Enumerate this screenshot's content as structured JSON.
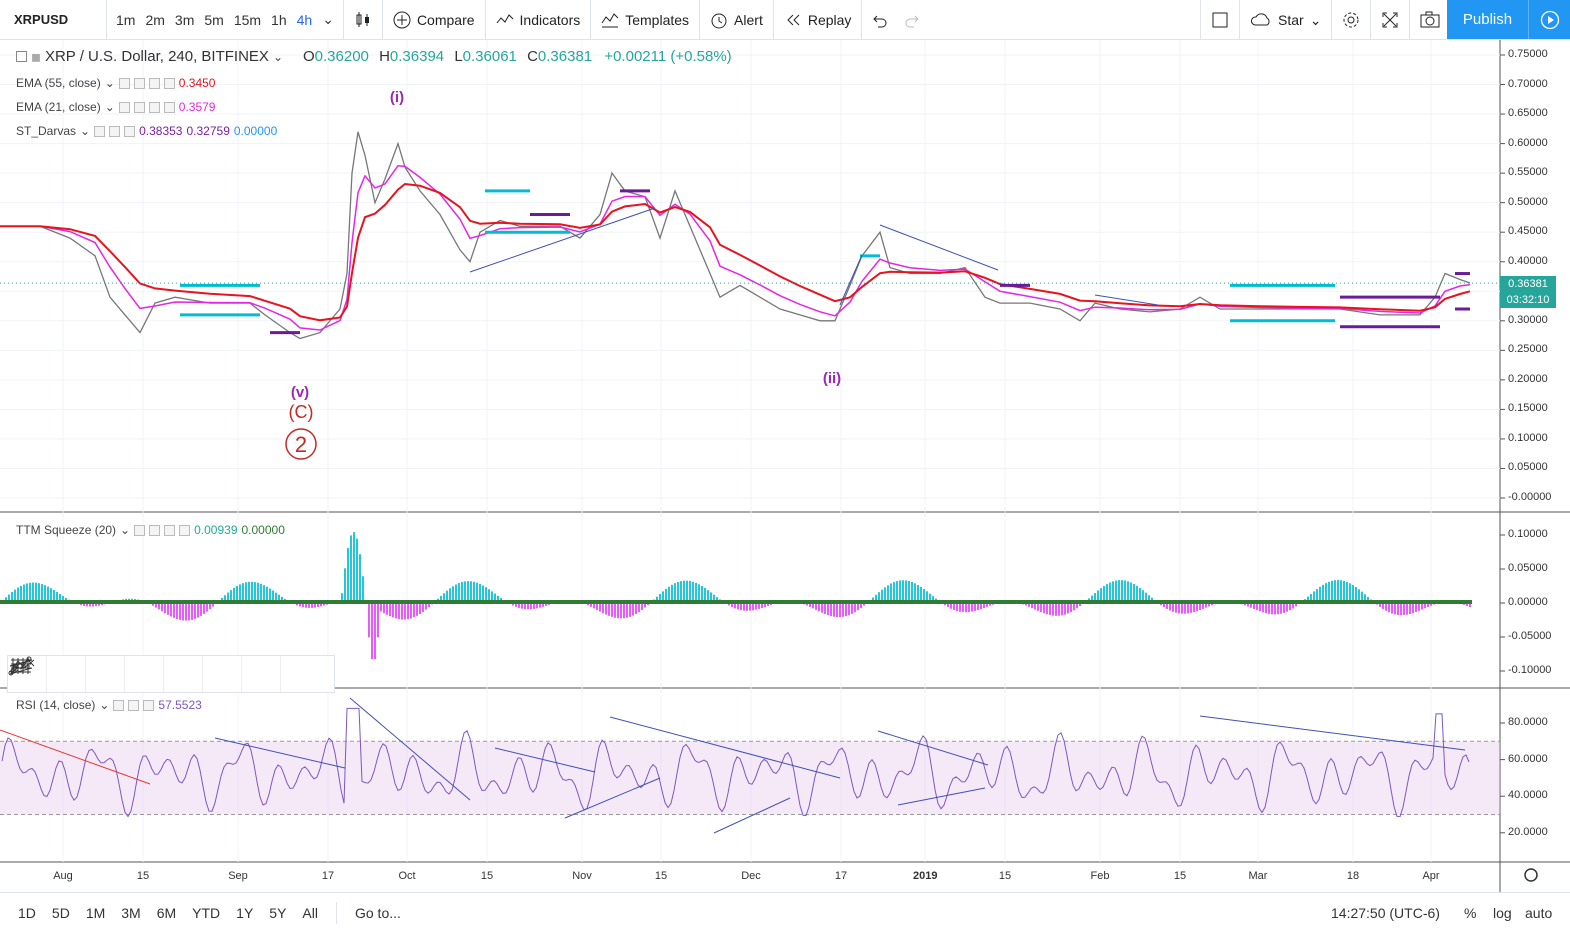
{
  "toolbar": {
    "symbol": "XRPUSD",
    "intervals": [
      "1m",
      "2m",
      "3m",
      "5m",
      "15m",
      "1h",
      "4h"
    ],
    "active_interval": "4h",
    "compare_label": "Compare",
    "indicators_label": "Indicators",
    "templates_label": "Templates",
    "alert_label": "Alert",
    "replay_label": "Replay",
    "star_label": "Star",
    "publish_label": "Publish"
  },
  "legend": {
    "title": "XRP / U.S. Dollar, 240, BITFINEX",
    "o_label": "O",
    "o": "0.36200",
    "h_label": "H",
    "h": "0.36394",
    "l_label": "L",
    "l": "0.36061",
    "c_label": "C",
    "c": "0.36381",
    "change": "+0.00211 (+0.58%)",
    "ema55_label": "EMA (55, close)",
    "ema55_value": "0.3450",
    "ema21_label": "EMA (21, close)",
    "ema21_value": "0.3579",
    "darvas_label": "ST_Darvas",
    "darvas_v1": "0.38353",
    "darvas_v2": "0.32759",
    "darvas_v3": "0.00000",
    "ttm_label": "TTM Squeeze (20)",
    "ttm_v1": "0.00939",
    "ttm_v2": "0.00000",
    "rsi_label": "RSI (14, close)",
    "rsi_value": "57.5523"
  },
  "colors": {
    "ema55": "#e5141e",
    "ema21": "#e526e5",
    "darvas": "#00bcd4",
    "up": "#26a69a",
    "accent": "#2196f3",
    "rsi": "#7e57c2"
  },
  "price_axis": [
    "0.75000",
    "0.70000",
    "0.65000",
    "0.60000",
    "0.55000",
    "0.50000",
    "0.45000",
    "0.40000",
    "0.35000",
    "0.30000",
    "0.25000",
    "0.20000",
    "0.15000",
    "0.10000",
    "0.05000",
    "-0.00000"
  ],
  "current_price": "0.36381",
  "countdown": "03:32:10",
  "ttm_axis": [
    "0.10000",
    "0.05000",
    "0.00000",
    "-0.05000",
    "-0.10000"
  ],
  "rsi_axis": [
    "80.0000",
    "60.0000",
    "40.0000",
    "20.0000"
  ],
  "time_axis": [
    "Aug",
    "15",
    "Sep",
    "17",
    "Oct",
    "15",
    "Nov",
    "15",
    "Dec",
    "17",
    "2019",
    "15",
    "Feb",
    "15",
    "Mar",
    "18",
    "Apr"
  ],
  "wave_labels": [
    "(i)",
    "(v)",
    "(C)",
    "2",
    "(ii)"
  ],
  "bottombar": {
    "ranges": [
      "1D",
      "5D",
      "1M",
      "3M",
      "6M",
      "YTD",
      "1Y",
      "5Y",
      "All"
    ],
    "goto": "Go to...",
    "time": "14:27:50 (UTC-6)",
    "percent": "%",
    "log": "log",
    "auto": "auto"
  }
}
